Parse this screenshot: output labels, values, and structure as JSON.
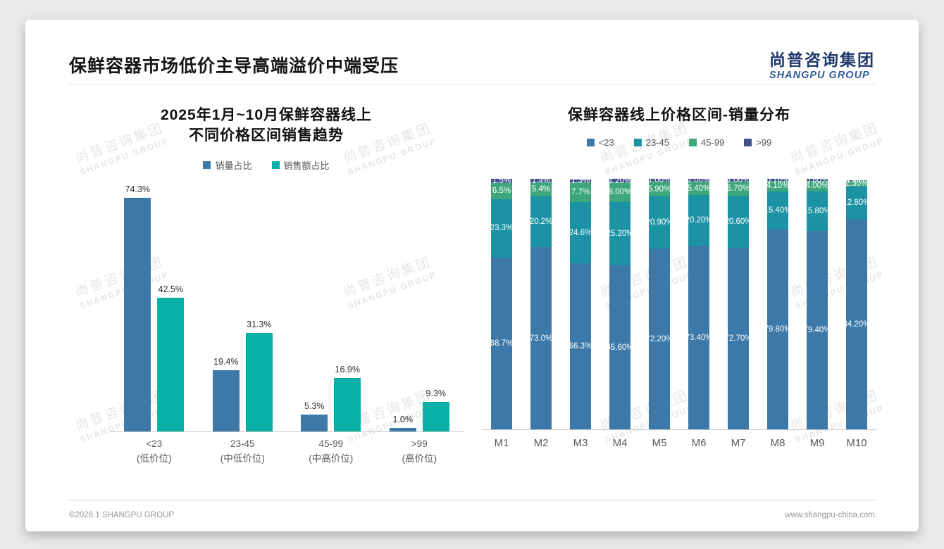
{
  "header": {
    "title": "保鲜容器市场低价主导高端溢价中端受压",
    "logo_cn": "尚普咨询集团",
    "logo_en": "SHANGPU GROUP"
  },
  "watermark": {
    "line1": "尚普咨询集团",
    "line2": "SHANGPU GROUP"
  },
  "footer": {
    "copyright": "©2026.1 SHANGPU GROUP",
    "website": "www.shangpu-china.com"
  },
  "chart_data": [
    {
      "type": "bar",
      "title_lines": [
        "2025年1月~10月保鲜容器线上",
        "不同价格区间销售趋势"
      ],
      "legend_position": "top",
      "grid": false,
      "ylim": [
        0,
        80
      ],
      "categories": [
        {
          "label": "<23",
          "sub": "(低价位)"
        },
        {
          "label": "23-45",
          "sub": "(中低价位)"
        },
        {
          "label": "45-99",
          "sub": "(中高价位)"
        },
        {
          "label": ">99",
          "sub": "(高价位)"
        }
      ],
      "series": [
        {
          "name": "销量占比",
          "color": "#3c79a9",
          "values": [
            74.3,
            19.4,
            5.3,
            1.0
          ],
          "labels": [
            "74.3%",
            "19.4%",
            "5.3%",
            "1.0%"
          ]
        },
        {
          "name": "销售额占比",
          "color": "#08b0a8",
          "values": [
            42.5,
            31.3,
            16.9,
            9.3
          ],
          "labels": [
            "42.5%",
            "31.3%",
            "16.9%",
            "9.3%"
          ]
        }
      ]
    },
    {
      "type": "stacked-bar",
      "title": "保鲜容器线上价格区间-销量分布",
      "legend_position": "top",
      "grid": false,
      "ylim": [
        0,
        100
      ],
      "categories": [
        "M1",
        "M2",
        "M3",
        "M4",
        "M5",
        "M6",
        "M7",
        "M8",
        "M9",
        "M10"
      ],
      "series": [
        {
          "name": "<23",
          "color": "#3c79a9",
          "values": [
            68.7,
            73.0,
            66.3,
            65.6,
            72.2,
            73.4,
            72.7,
            79.8,
            79.4,
            84.2
          ],
          "labels": [
            "68.7%",
            "73.0%",
            "66.3%",
            "65.60%",
            "72.20%",
            "73.40%",
            "72.70%",
            "79.80%",
            "79.40%",
            "84.20%"
          ]
        },
        {
          "name": "23-45",
          "color": "#1c93a5",
          "values": [
            23.3,
            20.2,
            24.6,
            25.2,
            20.9,
            20.2,
            20.6,
            15.4,
            15.8,
            12.8
          ],
          "labels": [
            "23.3%",
            "20.2%",
            "24.6%",
            "25.20%",
            "20.90%",
            "20.20%",
            "20.60%",
            "15.40%",
            "15.80%",
            "12.80%"
          ]
        },
        {
          "name": "45-99",
          "color": "#3ea67b",
          "values": [
            6.5,
            5.4,
            7.7,
            8.0,
            5.9,
            5.4,
            5.7,
            4.1,
            4.0,
            2.3
          ],
          "labels": [
            "6.5%",
            "5.4%",
            "7.7%",
            "8.00%",
            "5.90%",
            "5.40%",
            "5.70%",
            "4.10%",
            "4.00%",
            "2.30%"
          ]
        },
        {
          "name": ">99",
          "color": "#42518c",
          "values": [
            1.5,
            1.4,
            1.3,
            1.2,
            1.0,
            1.0,
            1.0,
            0.7,
            0.8,
            0.3
          ],
          "labels": [
            "1.5%",
            "1.4%",
            "1.3%",
            "1.20%",
            "1.00%",
            "1.00%",
            "1.00%",
            "0.70%",
            "0.80%",
            "0.30%"
          ]
        }
      ]
    }
  ]
}
